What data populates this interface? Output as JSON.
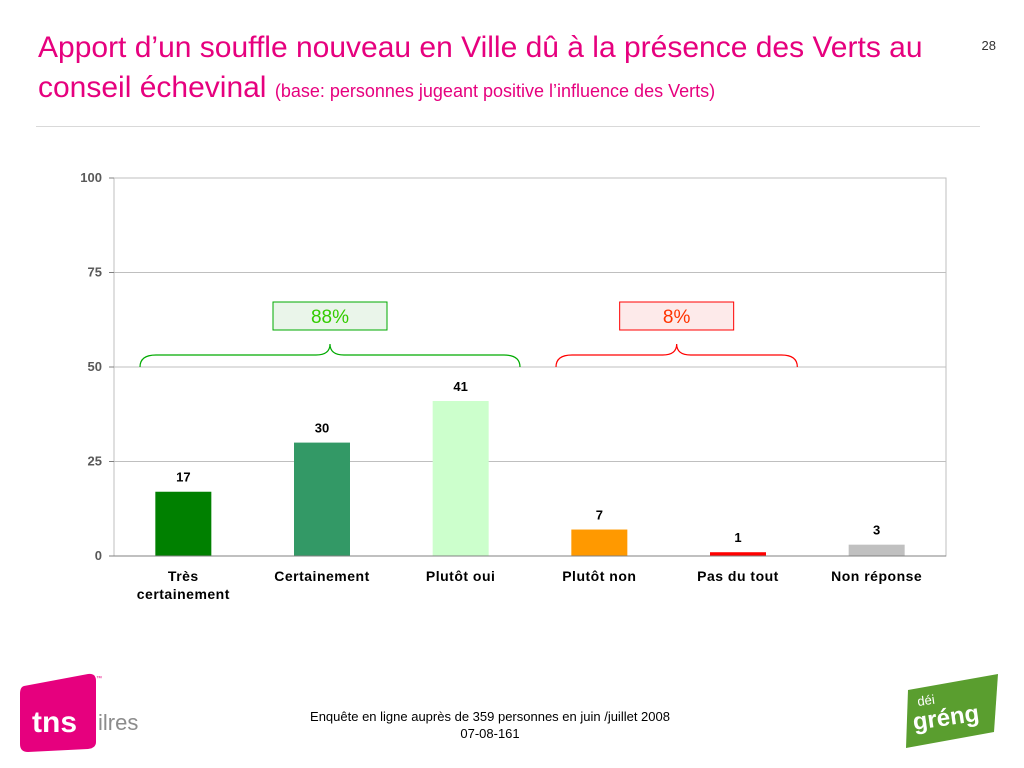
{
  "page_number": "28",
  "title": {
    "main": "Apport d’un souffle nouveau en Ville dû à la présence des Verts au conseil échevinal",
    "subtitle": "(base: personnes jugeant positive l’influence des Verts)"
  },
  "chart_data": {
    "type": "bar",
    "categories": [
      "Très certainement",
      "Certainement",
      "Plutôt oui",
      "Plutôt non",
      "Pas du tout",
      "Non réponse"
    ],
    "values": [
      17,
      30,
      41,
      7,
      1,
      3
    ],
    "colors": [
      "#008000",
      "#339966",
      "#ccffcc",
      "#ff9900",
      "#ff0000",
      "#c0c0c0"
    ],
    "ylim": [
      0,
      100
    ],
    "yticks": [
      0,
      25,
      50,
      75,
      100
    ],
    "grid": true,
    "brackets": [
      {
        "label": "88%",
        "categories": [
          0,
          2
        ],
        "color": "#00aa00",
        "label_color": "#33cc00",
        "fill": "#eaf5ea"
      },
      {
        "label": "8%",
        "categories": [
          3,
          4
        ],
        "color": "#ff0000",
        "label_color": "#ff3300",
        "fill": "#fdeaea"
      }
    ]
  },
  "footer": {
    "line1": "Enquête en ligne auprès de 359 personnes en juin /juillet 2008",
    "line2": "07-08-161"
  },
  "logos": {
    "tns": {
      "text": "tns",
      "suffix": "ilres",
      "tm": "™",
      "color": "#e6007e"
    },
    "greng": {
      "top": "déi",
      "bottom": "gréng",
      "color": "#5a9e2f"
    }
  }
}
